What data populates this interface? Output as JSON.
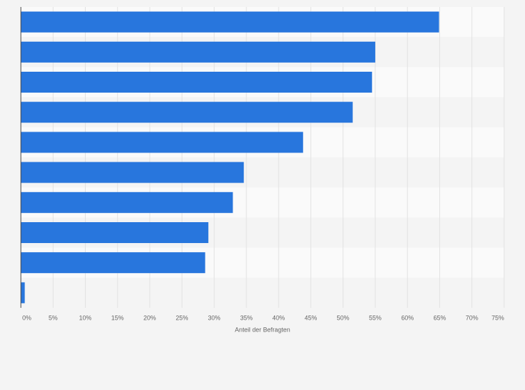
{
  "chart_data": {
    "type": "bar",
    "orientation": "horizontal",
    "categories": [
      null,
      null,
      null,
      null,
      null,
      null,
      null,
      null,
      null,
      null
    ],
    "values": [
      64.9,
      55.0,
      54.5,
      51.5,
      43.8,
      34.6,
      32.9,
      29.1,
      28.6,
      0.6
    ],
    "color": "#2876dd",
    "xlabel": "Anteil der Befragten",
    "xlim": [
      0,
      75
    ],
    "xticks": [
      {
        "value": 0,
        "label": "0%"
      },
      {
        "value": 5,
        "label": "5%"
      },
      {
        "value": 10,
        "label": "10%"
      },
      {
        "value": 15,
        "label": "15%"
      },
      {
        "value": 20,
        "label": "20%"
      },
      {
        "value": 25,
        "label": "25%"
      },
      {
        "value": 30,
        "label": "30%"
      },
      {
        "value": 35,
        "label": "35%"
      },
      {
        "value": 40,
        "label": "40%"
      },
      {
        "value": 45,
        "label": "45%"
      },
      {
        "value": 50,
        "label": "50%"
      },
      {
        "value": 55,
        "label": "55%"
      },
      {
        "value": 60,
        "label": "60%"
      },
      {
        "value": 65,
        "label": "65%"
      },
      {
        "value": 70,
        "label": "70%"
      },
      {
        "value": 75,
        "label": "75%"
      }
    ],
    "grid": true
  }
}
